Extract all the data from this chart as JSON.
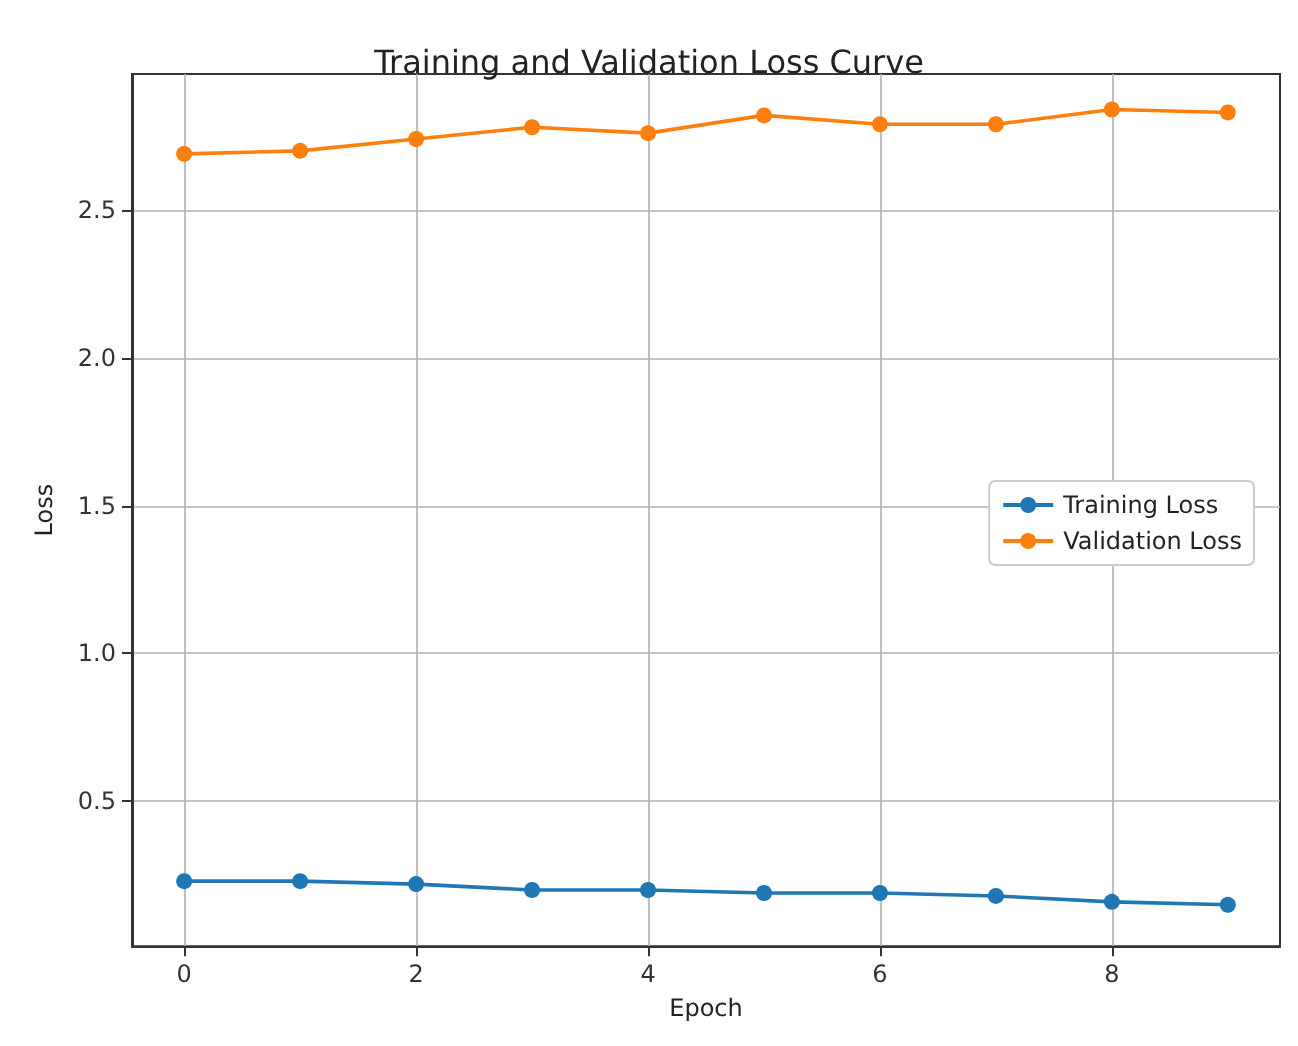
{
  "chart_data": {
    "type": "line",
    "title": "Training and Validation Loss Curve",
    "xlabel": "Epoch",
    "ylabel": "Loss",
    "x": [
      0,
      1,
      2,
      3,
      4,
      5,
      6,
      7,
      8,
      9
    ],
    "series": [
      {
        "name": "Training Loss",
        "color": "#1f77b4",
        "values": [
          0.23,
          0.23,
          0.22,
          0.2,
          0.2,
          0.19,
          0.19,
          0.18,
          0.16,
          0.15
        ]
      },
      {
        "name": "Validation Loss",
        "color": "#ff7f0e",
        "values": [
          2.69,
          2.7,
          2.74,
          2.78,
          2.76,
          2.82,
          2.79,
          2.79,
          2.84,
          2.83
        ]
      }
    ],
    "xlim": [
      -0.45,
      9.45
    ],
    "xticks": [
      0,
      2,
      4,
      6,
      8
    ],
    "ylim": [
      0.01,
      2.96
    ],
    "yticks": [
      0.5,
      {
        "value": 1,
        "label": "1.0"
      },
      1.5,
      {
        "value": 2,
        "label": "2.0"
      },
      2.5
    ],
    "grid": true,
    "legend": "right",
    "marker": "circle",
    "line_style": "solid"
  }
}
